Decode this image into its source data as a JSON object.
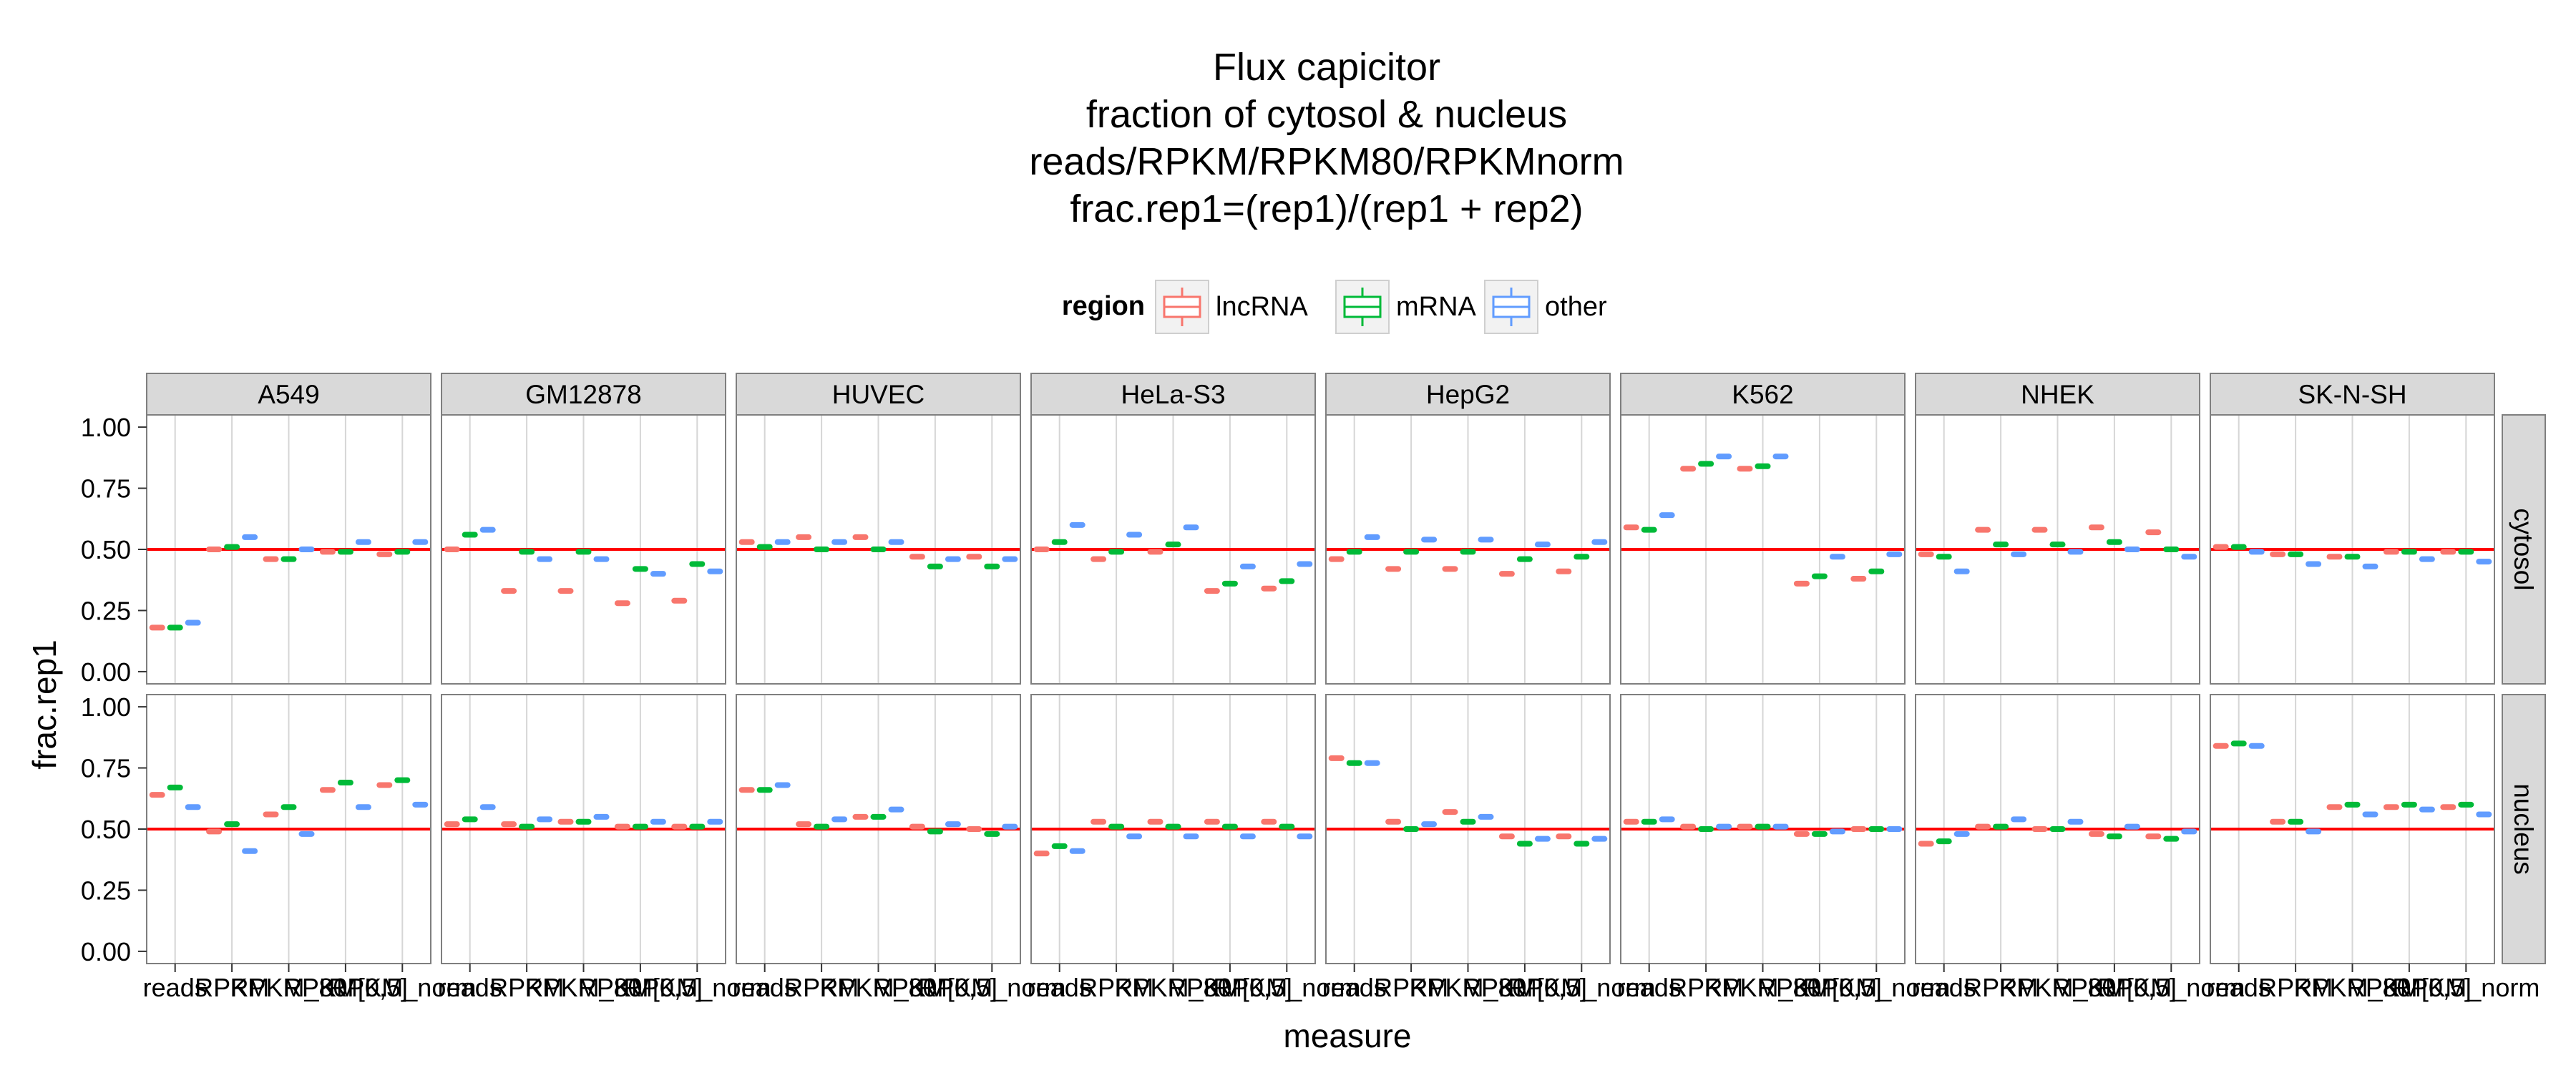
{
  "chart_data": {
    "type": "boxplot",
    "title_lines": [
      "Flux capicitor",
      "fraction of cytosol & nucleus",
      "reads/RPKM/RPKM80/RPKMnorm",
      "frac.rep1=(rep1)/(rep1 + rep2)"
    ],
    "xlabel": "measure",
    "ylabel": "frac.rep1",
    "legend_title": "region",
    "legend_position": "top",
    "series": [
      {
        "name": "lncRNA",
        "color": "#F8766D"
      },
      {
        "name": "mRNA",
        "color": "#00BA38"
      },
      {
        "name": "other",
        "color": "#619CFF"
      }
    ],
    "categories": [
      "reads",
      "RPKM",
      "RPKM_80",
      "RPKM[0,5]",
      "RPKM_norm"
    ],
    "tick_labels": [
      "reads",
      "RPKM",
      "RPKM_80",
      "RPKM[0,5]",
      "RPKM_norm"
    ],
    "ylim": [
      -0.05,
      1.05
    ],
    "yticks": [
      "0.00",
      "0.25",
      "0.50",
      "0.75",
      "1.00"
    ],
    "reference_line": {
      "y": 0.5,
      "color": "#FF0000"
    },
    "grid": true,
    "columns": [
      "A549",
      "GM12878",
      "HUVEC",
      "HeLa-S3",
      "HepG2",
      "K562",
      "NHEK",
      "SK-N-SH"
    ],
    "rows": [
      "cytosol",
      "nucleus"
    ],
    "values": {
      "cytosol": {
        "A549": [
          [
            0.18,
            0.18,
            0.2
          ],
          [
            0.5,
            0.51,
            0.55
          ],
          [
            0.46,
            0.46,
            0.5
          ],
          [
            0.49,
            0.49,
            0.53
          ],
          [
            0.48,
            0.49,
            0.53
          ]
        ],
        "GM12878": [
          [
            0.5,
            0.56,
            0.58
          ],
          [
            0.33,
            0.49,
            0.46
          ],
          [
            0.33,
            0.49,
            0.46
          ],
          [
            0.28,
            0.42,
            0.4
          ],
          [
            0.29,
            0.44,
            0.41
          ]
        ],
        "HUVEC": [
          [
            0.53,
            0.51,
            0.53
          ],
          [
            0.55,
            0.5,
            0.53
          ],
          [
            0.55,
            0.5,
            0.53
          ],
          [
            0.47,
            0.43,
            0.46
          ],
          [
            0.47,
            0.43,
            0.46
          ]
        ],
        "HeLa-S3": [
          [
            0.5,
            0.53,
            0.6
          ],
          [
            0.46,
            0.49,
            0.56
          ],
          [
            0.49,
            0.52,
            0.59
          ],
          [
            0.33,
            0.36,
            0.43
          ],
          [
            0.34,
            0.37,
            0.44
          ]
        ],
        "HepG2": [
          [
            0.46,
            0.49,
            0.55
          ],
          [
            0.42,
            0.49,
            0.54
          ],
          [
            0.42,
            0.49,
            0.54
          ],
          [
            0.4,
            0.46,
            0.52
          ],
          [
            0.41,
            0.47,
            0.53
          ]
        ],
        "K562": [
          [
            0.59,
            0.58,
            0.64
          ],
          [
            0.83,
            0.85,
            0.88
          ],
          [
            0.83,
            0.84,
            0.88
          ],
          [
            0.36,
            0.39,
            0.47
          ],
          [
            0.38,
            0.41,
            0.48
          ]
        ],
        "NHEK": [
          [
            0.48,
            0.47,
            0.41
          ],
          [
            0.58,
            0.52,
            0.48
          ],
          [
            0.58,
            0.52,
            0.49
          ],
          [
            0.59,
            0.53,
            0.5
          ],
          [
            0.57,
            0.5,
            0.47
          ]
        ],
        "SK-N-SH": [
          [
            0.51,
            0.51,
            0.49
          ],
          [
            0.48,
            0.48,
            0.44
          ],
          [
            0.47,
            0.47,
            0.43
          ],
          [
            0.49,
            0.49,
            0.46
          ],
          [
            0.49,
            0.49,
            0.45
          ]
        ]
      },
      "nucleus": {
        "A549": [
          [
            0.64,
            0.67,
            0.59
          ],
          [
            0.49,
            0.52,
            0.41
          ],
          [
            0.56,
            0.59,
            0.48
          ],
          [
            0.66,
            0.69,
            0.59
          ],
          [
            0.68,
            0.7,
            0.6
          ]
        ],
        "GM12878": [
          [
            0.52,
            0.54,
            0.59
          ],
          [
            0.52,
            0.51,
            0.54
          ],
          [
            0.53,
            0.53,
            0.55
          ],
          [
            0.51,
            0.51,
            0.53
          ],
          [
            0.51,
            0.51,
            0.53
          ]
        ],
        "HUVEC": [
          [
            0.66,
            0.66,
            0.68
          ],
          [
            0.52,
            0.51,
            0.54
          ],
          [
            0.55,
            0.55,
            0.58
          ],
          [
            0.51,
            0.49,
            0.52
          ],
          [
            0.5,
            0.48,
            0.51
          ]
        ],
        "HeLa-S3": [
          [
            0.4,
            0.43,
            0.41
          ],
          [
            0.53,
            0.51,
            0.47
          ],
          [
            0.53,
            0.51,
            0.47
          ],
          [
            0.53,
            0.51,
            0.47
          ],
          [
            0.53,
            0.51,
            0.47
          ]
        ],
        "HepG2": [
          [
            0.79,
            0.77,
            0.77
          ],
          [
            0.53,
            0.5,
            0.52
          ],
          [
            0.57,
            0.53,
            0.55
          ],
          [
            0.47,
            0.44,
            0.46
          ],
          [
            0.47,
            0.44,
            0.46
          ]
        ],
        "K562": [
          [
            0.53,
            0.53,
            0.54
          ],
          [
            0.51,
            0.5,
            0.51
          ],
          [
            0.51,
            0.51,
            0.51
          ],
          [
            0.48,
            0.48,
            0.49
          ],
          [
            0.5,
            0.5,
            0.5
          ]
        ],
        "NHEK": [
          [
            0.44,
            0.45,
            0.48
          ],
          [
            0.51,
            0.51,
            0.54
          ],
          [
            0.5,
            0.5,
            0.53
          ],
          [
            0.48,
            0.47,
            0.51
          ],
          [
            0.47,
            0.46,
            0.49
          ]
        ],
        "SK-N-SH": [
          [
            0.84,
            0.85,
            0.84
          ],
          [
            0.53,
            0.53,
            0.49
          ],
          [
            0.59,
            0.6,
            0.56
          ],
          [
            0.59,
            0.6,
            0.58
          ],
          [
            0.59,
            0.6,
            0.56
          ]
        ]
      }
    }
  }
}
